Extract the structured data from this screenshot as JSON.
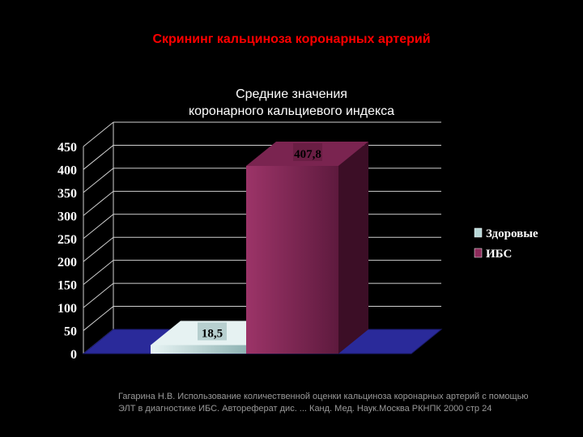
{
  "slide": {
    "title": "Скрининг кальциноза коронарных артерий"
  },
  "chart_data": {
    "type": "bar",
    "title_lines": [
      "Средние значения",
      "коронарного кальциевого индекса"
    ],
    "categories": [
      ""
    ],
    "series": [
      {
        "name": "Здоровые",
        "values": [
          18.5
        ],
        "label": "18,5",
        "color": "#b8d8d8"
      },
      {
        "name": "ИБС",
        "values": [
          407.8
        ],
        "label": "407,8",
        "color": "#8c2a5a"
      }
    ],
    "yticks": [
      "0",
      "50",
      "100",
      "150",
      "200",
      "250",
      "300",
      "350",
      "400",
      "450"
    ],
    "ylim": [
      0,
      450
    ],
    "grid": true,
    "legend_position": "right",
    "floor_color": "#2a2a9a"
  },
  "citation": {
    "lines": [
      "Гагарина Н.В. Использование количественной оценки кальциноза коронарных артерий с помощью",
      "ЭЛТ в диагностике ИБС. Автореферат дис. ... Канд. Мед. Наук.Москва РКНПК 2000 стр 24"
    ]
  }
}
